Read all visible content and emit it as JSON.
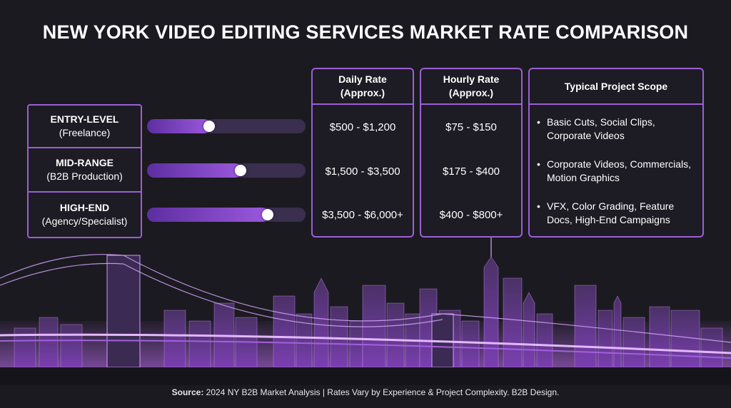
{
  "title": "NEW YORK VIDEO EDITING SERVICES MARKET RATE COMPARISON",
  "colors": {
    "accent": "#9b5fd6",
    "background": "#1b1a20",
    "bar_fill": "#9b59de",
    "bar_track": "#3a2f4f"
  },
  "tiers": [
    {
      "name": "ENTRY-LEVEL",
      "sub": "(Freelance)",
      "level": 0.4,
      "daily": "$500 - $1,200",
      "hourly": "$75 - $150",
      "scope": [
        "Basic Cuts, Social Clips,",
        "Corporate Videos"
      ]
    },
    {
      "name": "MID-RANGE",
      "sub": "(B2B Production)",
      "level": 0.6,
      "daily": "$1,500 - $3,500",
      "hourly": "$175 - $400",
      "scope": [
        "Corporate Videos, Commercials,",
        "Motion Graphics"
      ]
    },
    {
      "name": "HIGH-END",
      "sub": "(Agency/Specialist)",
      "level": 0.77,
      "daily": "$3,500 - $6,000+",
      "hourly": "$400 - $800+",
      "scope": [
        "VFX, Color Grading, Feature",
        "Docs, High-End Campaigns"
      ]
    }
  ],
  "columns": {
    "daily": [
      "Daily Rate",
      "(Approx.)"
    ],
    "hourly": [
      "Hourly Rate",
      "(Approx.)"
    ],
    "scope": "Typical Project Scope"
  },
  "footer": {
    "label": "Source:",
    "text": " 2024 NY B2B Market Analysis | Rates Vary by Experience & Project Complexity. B2B Design."
  }
}
